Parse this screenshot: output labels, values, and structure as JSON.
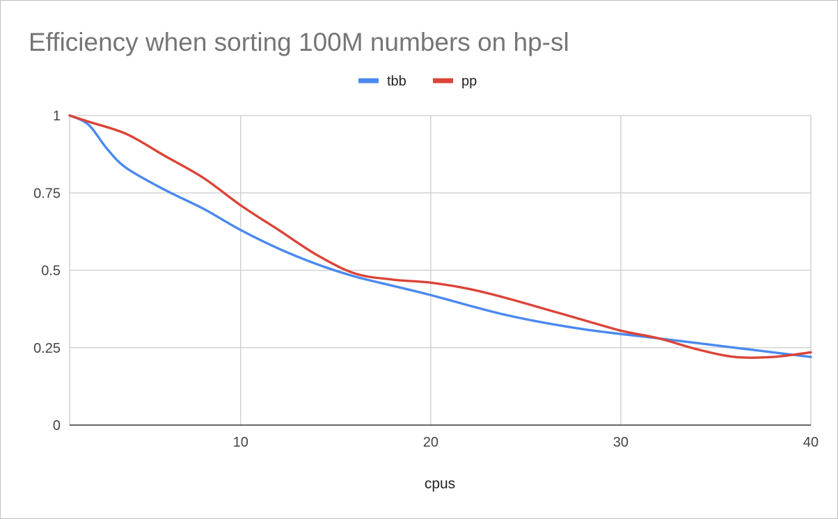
{
  "chart_data": {
    "type": "line",
    "title": "Efficiency when sorting 100M numbers on hp-sl",
    "xlabel": "cpus",
    "ylabel": "",
    "xlim": [
      1,
      40
    ],
    "ylim": [
      0,
      1
    ],
    "x_ticks": [
      10,
      20,
      30,
      40
    ],
    "y_ticks": [
      0,
      0.25,
      0.5,
      0.75,
      1
    ],
    "y_tick_labels": [
      "0",
      "0.25",
      "0.5",
      "0.75",
      "1"
    ],
    "grid": true,
    "legend_position": "top",
    "series": [
      {
        "name": "tbb",
        "color": "#4a89ee",
        "x": [
          1,
          2,
          3,
          4,
          6,
          8,
          10,
          12,
          14,
          16,
          18,
          20,
          24,
          28,
          32,
          36,
          40
        ],
        "y": [
          1.0,
          0.97,
          0.89,
          0.83,
          0.76,
          0.7,
          0.63,
          0.57,
          0.52,
          0.48,
          0.45,
          0.42,
          0.355,
          0.31,
          0.28,
          0.25,
          0.22
        ]
      },
      {
        "name": "pp",
        "color": "#db4437",
        "x": [
          1,
          2,
          4,
          6,
          8,
          10,
          12,
          14,
          16,
          18,
          20,
          22,
          24,
          26,
          28,
          30,
          32,
          34,
          36,
          38,
          40
        ],
        "y": [
          1.0,
          0.98,
          0.94,
          0.87,
          0.8,
          0.71,
          0.63,
          0.55,
          0.49,
          0.47,
          0.46,
          0.44,
          0.41,
          0.375,
          0.34,
          0.305,
          0.28,
          0.245,
          0.22,
          0.22,
          0.235
        ]
      }
    ]
  }
}
